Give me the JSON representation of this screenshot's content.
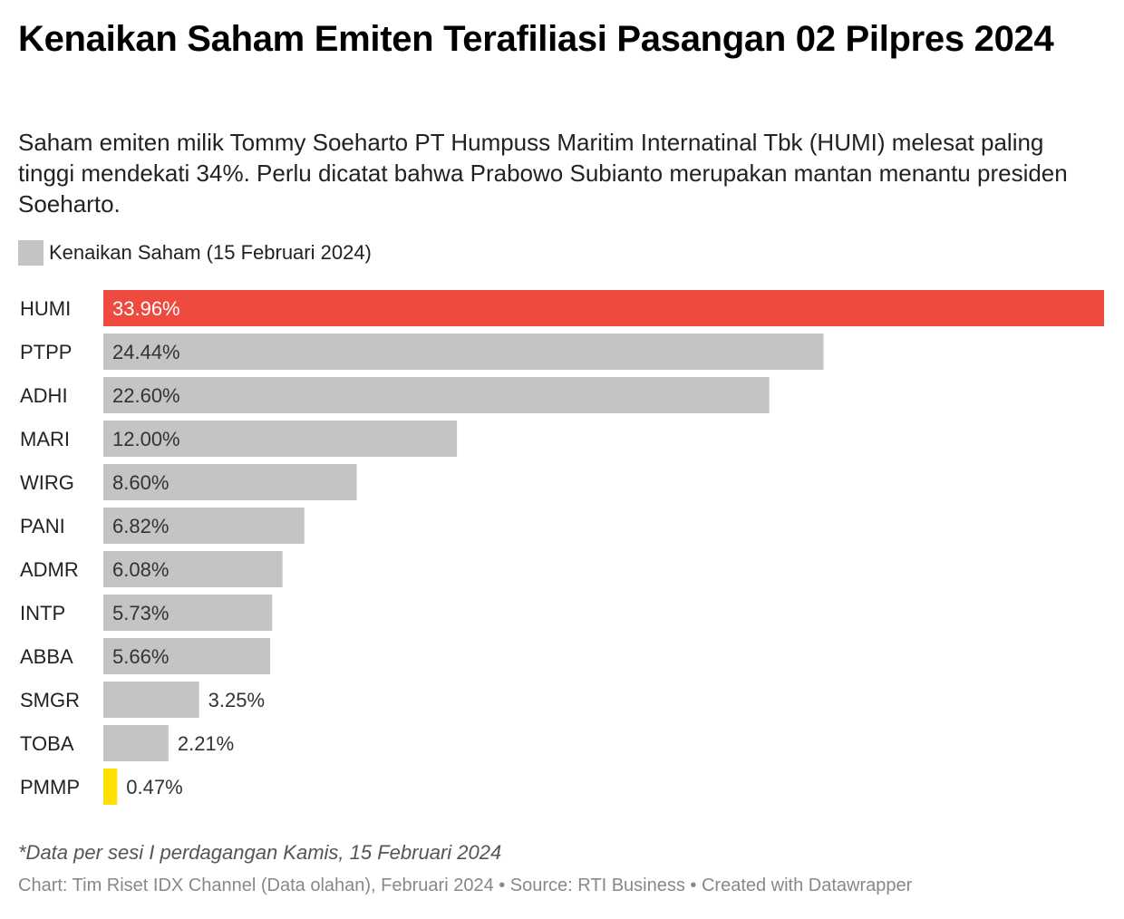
{
  "header": {
    "title": "Kenaikan Saham Emiten Terafiliasi Pasangan 02 Pilpres 2024",
    "subtitle": "Saham emiten milik Tommy Soeharto PT Humpuss Maritim Internatinal Tbk (HUMI) melesat paling tinggi mendekati 34%. Perlu dicatat bahwa Prabowo Subianto merupakan mantan menantu presiden Soeharto."
  },
  "legend": {
    "label": "Kenaikan Saham (15 Februari 2024)",
    "color": "#c4c4c4"
  },
  "colors": {
    "default": "#c4c4c4",
    "highlight_red": "#ef4a3f",
    "highlight_yellow": "#ffe100",
    "label_on_red": "#ffffff",
    "label_default": "#333333"
  },
  "chart_data": {
    "type": "bar",
    "orientation": "horizontal",
    "categories": [
      "HUMI",
      "PTPP",
      "ADHI",
      "MARI",
      "WIRG",
      "PANI",
      "ADMR",
      "INTP",
      "ABBA",
      "SMGR",
      "TOBA",
      "PMMP"
    ],
    "series": [
      {
        "name": "Kenaikan Saham (15 Februari 2024)",
        "values": [
          33.96,
          24.44,
          22.6,
          12.0,
          8.6,
          6.82,
          6.08,
          5.73,
          5.66,
          3.25,
          2.21,
          0.47
        ],
        "labels": [
          "33.96%",
          "24.44%",
          "22.60%",
          "12.00%",
          "8.60%",
          "6.82%",
          "6.08%",
          "5.73%",
          "5.66%",
          "3.25%",
          "2.21%",
          "0.47%"
        ]
      }
    ],
    "highlights": {
      "HUMI": "#ef4a3f",
      "PMMP": "#ffe100"
    },
    "xlim": [
      0,
      33.96
    ],
    "unit": "%",
    "grid": false,
    "legend_position": "top-left"
  },
  "footer": {
    "note": "*Data per sesi I perdagangan Kamis, 15 Februari 2024",
    "credit": "Chart: Tim Riset IDX Channel (Data olahan), Februari 2024 • Source: RTI Business • Created with Datawrapper"
  }
}
